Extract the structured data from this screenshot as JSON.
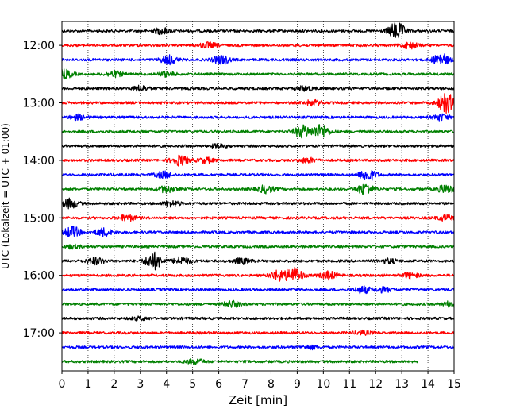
{
  "chart_data": {
    "type": "line",
    "title": "",
    "xlabel": "Zeit  [min]",
    "ylabel": "UTC (Lokalzeit = UTC + 01:00)",
    "xlim": [
      0,
      15
    ],
    "x_ticks": [
      "0",
      "1",
      "2",
      "3",
      "4",
      "5",
      "6",
      "7",
      "8",
      "9",
      "10",
      "11",
      "12",
      "13",
      "14",
      "15"
    ],
    "y_tick_labels": [
      "12:00",
      "13:00",
      "14:00",
      "15:00",
      "16:00",
      "17:00"
    ],
    "grid": "vertical dotted at each minute",
    "trace_colors": [
      "#000000",
      "#ff0000",
      "#0000ff",
      "#008000"
    ],
    "series": [
      {
        "start": "11:45",
        "color": "#000000",
        "events": [
          [
            3.8,
            0.9
          ],
          [
            12.8,
            2.6
          ]
        ]
      },
      {
        "start": "12:00",
        "color": "#ff0000",
        "events": [
          [
            5.6,
            0.8
          ],
          [
            13.3,
            0.9
          ]
        ]
      },
      {
        "start": "12:15",
        "color": "#0000ff",
        "events": [
          [
            4.1,
            1.3
          ],
          [
            6.1,
            1.3
          ],
          [
            14.5,
            1.8
          ]
        ]
      },
      {
        "start": "12:30",
        "color": "#008000",
        "events": [
          [
            0.1,
            1.3
          ],
          [
            2.0,
            0.8
          ],
          [
            4.0,
            0.7
          ]
        ]
      },
      {
        "start": "12:45",
        "color": "#000000",
        "events": [
          [
            3.0,
            0.8
          ],
          [
            9.3,
            0.7
          ]
        ]
      },
      {
        "start": "13:00",
        "color": "#ff0000",
        "events": [
          [
            9.6,
            0.8
          ],
          [
            14.7,
            3.0
          ]
        ]
      },
      {
        "start": "13:15",
        "color": "#0000ff",
        "events": [
          [
            0.6,
            0.7
          ],
          [
            14.5,
            0.9
          ]
        ]
      },
      {
        "start": "13:30",
        "color": "#008000",
        "events": [
          [
            9.2,
            1.8
          ],
          [
            9.9,
            2.0
          ]
        ]
      },
      {
        "start": "13:45",
        "color": "#000000",
        "events": [
          [
            6.0,
            0.5
          ]
        ]
      },
      {
        "start": "14:00",
        "color": "#ff0000",
        "events": [
          [
            4.5,
            1.5
          ],
          [
            5.5,
            0.7
          ],
          [
            9.4,
            0.7
          ]
        ]
      },
      {
        "start": "14:15",
        "color": "#0000ff",
        "events": [
          [
            3.9,
            0.9
          ],
          [
            11.7,
            1.8
          ]
        ]
      },
      {
        "start": "14:30",
        "color": "#008000",
        "events": [
          [
            4.0,
            1.0
          ],
          [
            7.8,
            1.1
          ],
          [
            11.6,
            1.6
          ],
          [
            14.7,
            1.2
          ]
        ]
      },
      {
        "start": "14:45",
        "color": "#000000",
        "events": [
          [
            0.3,
            1.4
          ],
          [
            4.2,
            0.8
          ]
        ]
      },
      {
        "start": "15:00",
        "color": "#ff0000",
        "events": [
          [
            2.5,
            0.9
          ],
          [
            14.7,
            0.8
          ]
        ]
      },
      {
        "start": "15:15",
        "color": "#0000ff",
        "events": [
          [
            0.4,
            1.6
          ],
          [
            1.6,
            1.2
          ]
        ]
      },
      {
        "start": "15:30",
        "color": "#008000",
        "events": [
          [
            0.4,
            0.5
          ]
        ]
      },
      {
        "start": "15:45",
        "color": "#000000",
        "events": [
          [
            1.3,
            1.0
          ],
          [
            3.5,
            2.6
          ],
          [
            4.6,
            1.2
          ],
          [
            6.9,
            0.8
          ],
          [
            12.5,
            0.7
          ]
        ]
      },
      {
        "start": "16:00",
        "color": "#ff0000",
        "events": [
          [
            8.3,
            1.5
          ],
          [
            8.9,
            2.2
          ],
          [
            10.2,
            1.2
          ],
          [
            13.3,
            0.8
          ]
        ]
      },
      {
        "start": "16:15",
        "color": "#0000ff",
        "events": [
          [
            11.5,
            1.0
          ],
          [
            12.3,
            0.7
          ]
        ]
      },
      {
        "start": "16:30",
        "color": "#008000",
        "events": [
          [
            6.5,
            0.9
          ],
          [
            14.9,
            0.8
          ]
        ]
      },
      {
        "start": "16:45",
        "color": "#000000",
        "events": [
          [
            3.0,
            0.5
          ]
        ]
      },
      {
        "start": "17:00",
        "color": "#ff0000",
        "events": [
          [
            11.5,
            0.5
          ]
        ]
      },
      {
        "start": "17:15",
        "color": "#0000ff",
        "events": [
          [
            9.5,
            0.5
          ]
        ]
      },
      {
        "start": "17:30",
        "color": "#008000",
        "events": [
          [
            5.1,
            0.8
          ]
        ],
        "end": 13.6
      }
    ]
  }
}
